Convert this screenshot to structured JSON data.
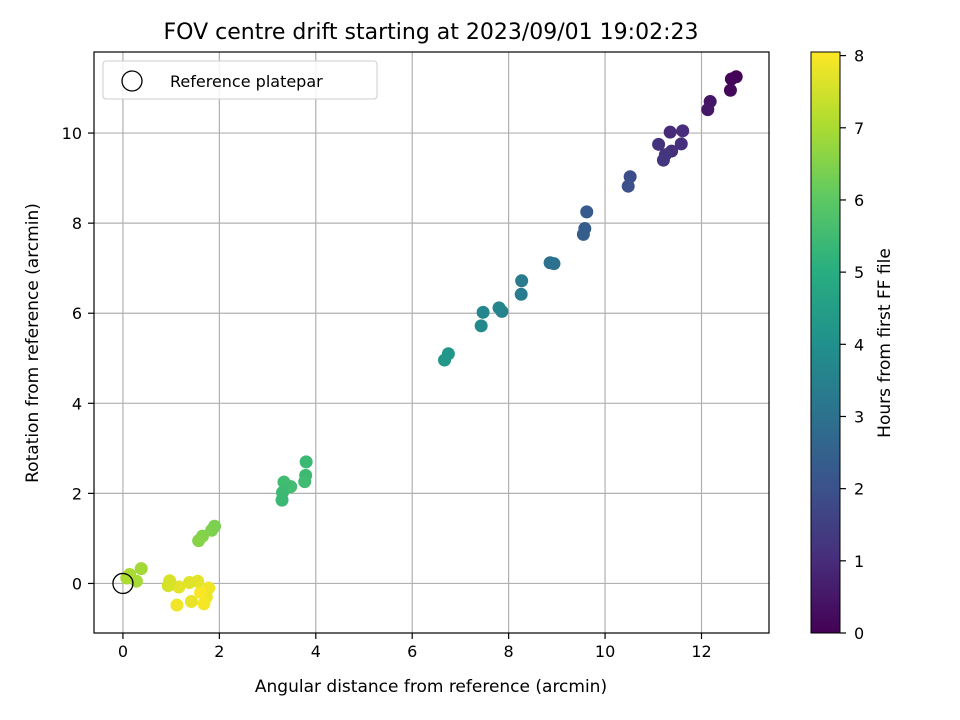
{
  "chart_data": {
    "type": "scatter",
    "title": "FOV centre drift starting at 2023/09/01 19:02:23",
    "xlabel": "Angular distance from reference (arcmin)",
    "ylabel": "Rotation from reference (arcmin)",
    "xlim": [
      -0.6,
      13.4
    ],
    "ylim": [
      -1.1,
      11.8
    ],
    "xticks": [
      0,
      2,
      4,
      6,
      8,
      10,
      12
    ],
    "yticks": [
      0,
      2,
      4,
      6,
      8,
      10
    ],
    "grid": true,
    "legend": {
      "placement": "top-left",
      "entries": [
        "Reference platepar"
      ]
    },
    "reference_point": {
      "x": 0,
      "y": 0
    },
    "colorbar": {
      "label": "Hours from first FF file",
      "range": [
        0,
        8.05
      ],
      "ticks": [
        0,
        1,
        2,
        3,
        4,
        5,
        6,
        7,
        8
      ],
      "colormap": "viridis"
    },
    "series": [
      {
        "x": [
          12.72,
          12.62,
          12.6,
          12.18,
          12.13,
          11.61,
          11.58,
          11.38,
          11.35,
          11.25,
          11.21,
          11.11,
          10.52,
          10.48,
          9.62,
          9.58,
          9.55,
          8.94,
          8.86,
          8.27,
          8.26,
          7.86,
          7.8,
          7.47,
          7.43,
          6.75,
          6.67,
          3.8,
          3.79,
          3.77,
          3.48,
          3.34,
          3.31,
          3.3,
          1.9,
          1.84,
          1.65,
          1.57,
          0.38,
          0.28,
          0.14,
          0.08,
          1.78,
          1.73,
          1.68,
          1.61,
          1.55,
          1.42,
          1.38,
          1.16,
          1.12,
          0.97,
          0.94
        ],
        "y": [
          11.25,
          11.2,
          10.95,
          10.7,
          10.52,
          10.05,
          9.76,
          9.6,
          10.02,
          9.52,
          9.4,
          9.75,
          9.03,
          8.82,
          8.25,
          7.88,
          7.75,
          7.1,
          7.12,
          6.72,
          6.42,
          6.04,
          6.12,
          6.02,
          5.72,
          5.1,
          4.96,
          2.7,
          2.4,
          2.26,
          2.15,
          2.25,
          2.02,
          1.85,
          1.27,
          1.18,
          1.05,
          0.95,
          0.33,
          0.05,
          0.2,
          0.12,
          -0.1,
          -0.3,
          -0.45,
          -0.2,
          0.05,
          -0.4,
          0.02,
          -0.08,
          -0.48,
          0.06,
          -0.05
        ],
        "hours": [
          0.05,
          0.1,
          0.15,
          0.45,
          0.5,
          1.0,
          1.05,
          1.1,
          0.95,
          1.2,
          1.25,
          1.15,
          1.9,
          1.95,
          2.3,
          2.35,
          2.4,
          2.95,
          3.0,
          3.3,
          3.35,
          3.55,
          3.6,
          3.7,
          3.75,
          4.2,
          4.25,
          5.4,
          5.45,
          5.5,
          5.55,
          5.5,
          5.45,
          5.4,
          6.4,
          6.45,
          6.5,
          6.55,
          6.9,
          6.95,
          7.0,
          7.05,
          7.9,
          7.85,
          7.95,
          8.0,
          7.75,
          7.8,
          7.7,
          7.72,
          7.9,
          7.6,
          7.55
        ]
      }
    ]
  }
}
